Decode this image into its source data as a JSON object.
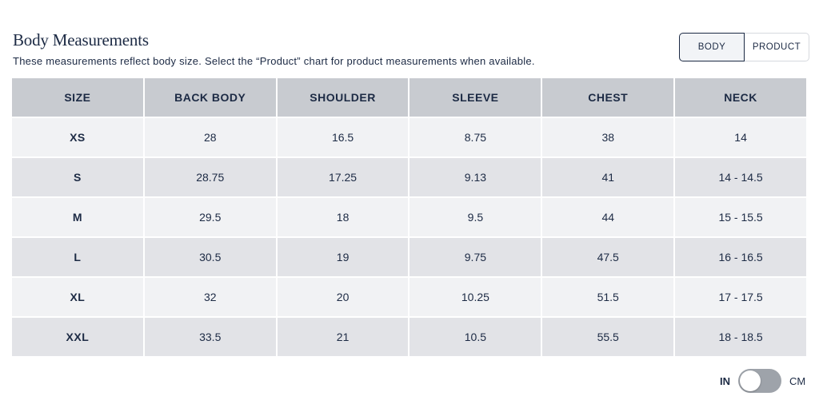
{
  "header": {
    "title": "Body Measurements",
    "subtitle": "These measurements reflect body size. Select the “Product” chart for product measurements when available."
  },
  "chart_toggle": {
    "options": [
      "BODY",
      "PRODUCT"
    ],
    "selected": "BODY"
  },
  "table": {
    "columns": [
      "SIZE",
      "BACK BODY",
      "SHOULDER",
      "SLEEVE",
      "CHEST",
      "NECK"
    ],
    "rows": [
      [
        "XS",
        "28",
        "16.5",
        "8.75",
        "38",
        "14"
      ],
      [
        "S",
        "28.75",
        "17.25",
        "9.13",
        "41",
        "14 - 14.5"
      ],
      [
        "M",
        "29.5",
        "18",
        "9.5",
        "44",
        "15 - 15.5"
      ],
      [
        "L",
        "30.5",
        "19",
        "9.75",
        "47.5",
        "16 - 16.5"
      ],
      [
        "XL",
        "32",
        "20",
        "10.25",
        "51.5",
        "17 - 17.5"
      ],
      [
        "XXL",
        "33.5",
        "21",
        "10.5",
        "55.5",
        "18 - 18.5"
      ]
    ]
  },
  "unit_switch": {
    "left_label": "IN",
    "right_label": "CM",
    "selected": "IN"
  },
  "colors": {
    "text": "#1c2a44",
    "header_bg": "#c8cbd0",
    "row_light": "#f1f2f4",
    "row_dark": "#e2e3e7",
    "switch_track": "#9ea3aa"
  }
}
